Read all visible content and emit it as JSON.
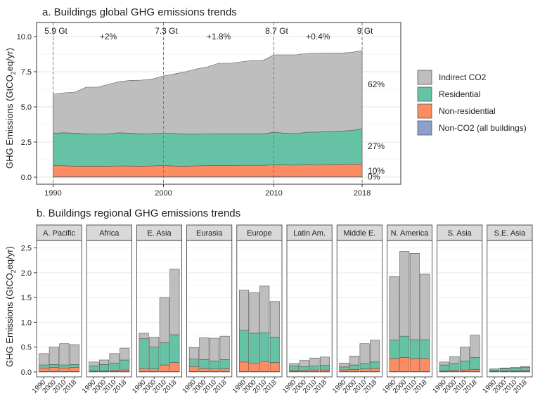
{
  "chart_data": [
    {
      "type": "area",
      "title": "a. Buildings global GHG emissions trends",
      "ylabel": "GHG Emissions (GtCO2eq/yr)",
      "ylabel_base": "GHG Emissions (GtCO",
      "ylabel_sub": "2",
      "ylabel_tail": "eq/yr)",
      "ylim": [
        -0.5,
        11
      ],
      "xlim": [
        1988.5,
        2021.5
      ],
      "y_ticks": [
        "0.0",
        "2.5",
        "5.0",
        "7.5",
        "10.0"
      ],
      "y_tick_values": [
        0,
        2.5,
        5,
        7.5,
        10
      ],
      "x_ticks": [
        "1990",
        "2000",
        "2010",
        "2018"
      ],
      "x_tick_values": [
        1990,
        2000,
        2010,
        2018
      ],
      "grid": true,
      "x": [
        1990,
        1991,
        1992,
        1993,
        1994,
        1995,
        1996,
        1997,
        1998,
        1999,
        2000,
        2001,
        2002,
        2003,
        2004,
        2005,
        2006,
        2007,
        2008,
        2009,
        2010,
        2011,
        2012,
        2013,
        2014,
        2015,
        2016,
        2017,
        2018
      ],
      "series": [
        {
          "name": "Non-CO2 (all buildings)",
          "color": "#8DA0CB",
          "values": [
            0.04,
            0.04,
            0.04,
            0.04,
            0.04,
            0.04,
            0.04,
            0.04,
            0.04,
            0.04,
            0.04,
            0.04,
            0.04,
            0.04,
            0.04,
            0.04,
            0.04,
            0.04,
            0.04,
            0.04,
            0.04,
            0.04,
            0.04,
            0.04,
            0.04,
            0.04,
            0.04,
            0.04,
            0.04
          ]
        },
        {
          "name": "Non-residential",
          "color": "#FC8D62",
          "values": [
            0.78,
            0.77,
            0.74,
            0.74,
            0.74,
            0.74,
            0.76,
            0.75,
            0.74,
            0.76,
            0.78,
            0.75,
            0.74,
            0.76,
            0.78,
            0.79,
            0.79,
            0.8,
            0.8,
            0.8,
            0.84,
            0.83,
            0.82,
            0.84,
            0.85,
            0.86,
            0.87,
            0.88,
            0.9
          ]
        },
        {
          "name": "Residential",
          "color": "#66C2A5",
          "values": [
            2.3,
            2.35,
            2.35,
            2.3,
            2.28,
            2.32,
            2.36,
            2.34,
            2.3,
            2.3,
            2.3,
            2.32,
            2.28,
            2.26,
            2.25,
            2.25,
            2.25,
            2.24,
            2.24,
            2.24,
            2.32,
            2.26,
            2.24,
            2.32,
            2.32,
            2.34,
            2.36,
            2.4,
            2.5
          ]
        },
        {
          "name": "Indirect CO2",
          "color": "#BEBEBE",
          "values": [
            2.78,
            2.84,
            2.92,
            3.32,
            3.34,
            3.5,
            3.64,
            3.75,
            3.82,
            3.88,
            4.08,
            4.23,
            4.44,
            4.64,
            4.78,
            5.02,
            5.02,
            5.12,
            5.22,
            5.21,
            5.5,
            5.57,
            5.6,
            5.6,
            5.6,
            5.58,
            5.55,
            5.55,
            5.56
          ]
        }
      ],
      "legend_placement": "right",
      "legend_order": [
        "Indirect CO2",
        "Residential",
        "Non-residential",
        "Non-CO2 (all buildings)"
      ],
      "annotations": {
        "totals": [
          {
            "x": 1990,
            "label": "5.9 Gt"
          },
          {
            "x": 2000,
            "label": "7.3 Gt"
          },
          {
            "x": 2010,
            "label": "8.7 Gt"
          },
          {
            "x": 2018,
            "label": "9 Gt"
          }
        ],
        "growth_rates": [
          {
            "x": 1995,
            "label": "+2%"
          },
          {
            "x": 2005,
            "label": "+1.8%"
          },
          {
            "x": 2014,
            "label": "+0.4%"
          }
        ],
        "shares": [
          {
            "y": 6.6,
            "label": "62%"
          },
          {
            "y": 2.2,
            "label": "27%"
          },
          {
            "y": 0.45,
            "label": "10%"
          },
          {
            "y": 0.02,
            "label": "0%"
          }
        ]
      }
    },
    {
      "type": "bar",
      "title": "b. Buildings regional GHG emissions trends",
      "ylabel": "GHG Emissions (GtCO2eq/yr)",
      "ylabel_base": "GHG Emissions (GtCO",
      "ylabel_sub": "2",
      "ylabel_tail": "eq/yr)",
      "ylim": [
        -0.1,
        2.65
      ],
      "y_ticks": [
        "0.0",
        "0.5",
        "1.0",
        "1.5",
        "2.0",
        "2.5"
      ],
      "y_tick_values": [
        0,
        0.5,
        1,
        1.5,
        2,
        2.5
      ],
      "categories": [
        "1990",
        "2000",
        "2010",
        "2018"
      ],
      "stack_order": [
        "Non-CO2 (all buildings)",
        "Non-residential",
        "Residential",
        "Indirect CO2"
      ],
      "colors": {
        "Non-CO2 (all buildings)": "#8DA0CB",
        "Non-residential": "#FC8D62",
        "Residential": "#66C2A5",
        "Indirect CO2": "#BEBEBE"
      },
      "grid": true,
      "panels": [
        {
          "region": "A. Pacific",
          "bars": [
            [
              0.01,
              0.07,
              0.06,
              0.23
            ],
            [
              0.01,
              0.08,
              0.06,
              0.35
            ],
            [
              0.01,
              0.07,
              0.06,
              0.43
            ],
            [
              0.01,
              0.08,
              0.06,
              0.4
            ]
          ]
        },
        {
          "region": "Africa",
          "bars": [
            [
              0.01,
              0.01,
              0.1,
              0.08
            ],
            [
              0.01,
              0.01,
              0.13,
              0.09
            ],
            [
              0.01,
              0.02,
              0.15,
              0.19
            ],
            [
              0.01,
              0.03,
              0.2,
              0.24
            ]
          ]
        },
        {
          "region": "E. Asia",
          "bars": [
            [
              0.01,
              0.06,
              0.6,
              0.11
            ],
            [
              0.01,
              0.05,
              0.44,
              0.2
            ],
            [
              0.01,
              0.13,
              0.45,
              0.91
            ],
            [
              0.01,
              0.18,
              0.56,
              1.32
            ]
          ]
        },
        {
          "region": "Eurasia",
          "bars": [
            [
              0.01,
              0.1,
              0.15,
              0.23
            ],
            [
              0.01,
              0.06,
              0.18,
              0.44
            ],
            [
              0.01,
              0.05,
              0.16,
              0.46
            ],
            [
              0.01,
              0.05,
              0.19,
              0.47
            ]
          ]
        },
        {
          "region": "Europe",
          "bars": [
            [
              0.01,
              0.19,
              0.64,
              0.81
            ],
            [
              0.01,
              0.17,
              0.6,
              0.82
            ],
            [
              0.01,
              0.2,
              0.58,
              0.94
            ],
            [
              0.01,
              0.18,
              0.51,
              0.72
            ]
          ]
        },
        {
          "region": "Latin Am.",
          "bars": [
            [
              0.01,
              0.02,
              0.09,
              0.05
            ],
            [
              0.01,
              0.02,
              0.08,
              0.12
            ],
            [
              0.01,
              0.03,
              0.08,
              0.16
            ],
            [
              0.01,
              0.03,
              0.09,
              0.17
            ]
          ]
        },
        {
          "region": "Middle E.",
          "bars": [
            [
              0.01,
              0.03,
              0.06,
              0.08
            ],
            [
              0.01,
              0.04,
              0.09,
              0.18
            ],
            [
              0.01,
              0.05,
              0.11,
              0.4
            ],
            [
              0.01,
              0.06,
              0.13,
              0.44
            ]
          ]
        },
        {
          "region": "N. America",
          "bars": [
            [
              0.01,
              0.26,
              0.37,
              1.28
            ],
            [
              0.01,
              0.28,
              0.43,
              1.71
            ],
            [
              0.01,
              0.26,
              0.38,
              1.74
            ],
            [
              0.01,
              0.26,
              0.38,
              1.32
            ]
          ]
        },
        {
          "region": "S. Asia",
          "bars": [
            [
              0.01,
              0.01,
              0.12,
              0.06
            ],
            [
              0.01,
              0.02,
              0.14,
              0.14
            ],
            [
              0.01,
              0.03,
              0.18,
              0.28
            ],
            [
              0.01,
              0.04,
              0.24,
              0.45
            ]
          ]
        },
        {
          "region": "S.E. Asia",
          "bars": [
            [
              0.01,
              0.01,
              0.04,
              0.0
            ],
            [
              0.01,
              0.01,
              0.05,
              0.01
            ],
            [
              0.01,
              0.01,
              0.06,
              0.01
            ],
            [
              0.01,
              0.02,
              0.06,
              0.02
            ]
          ]
        }
      ]
    }
  ]
}
